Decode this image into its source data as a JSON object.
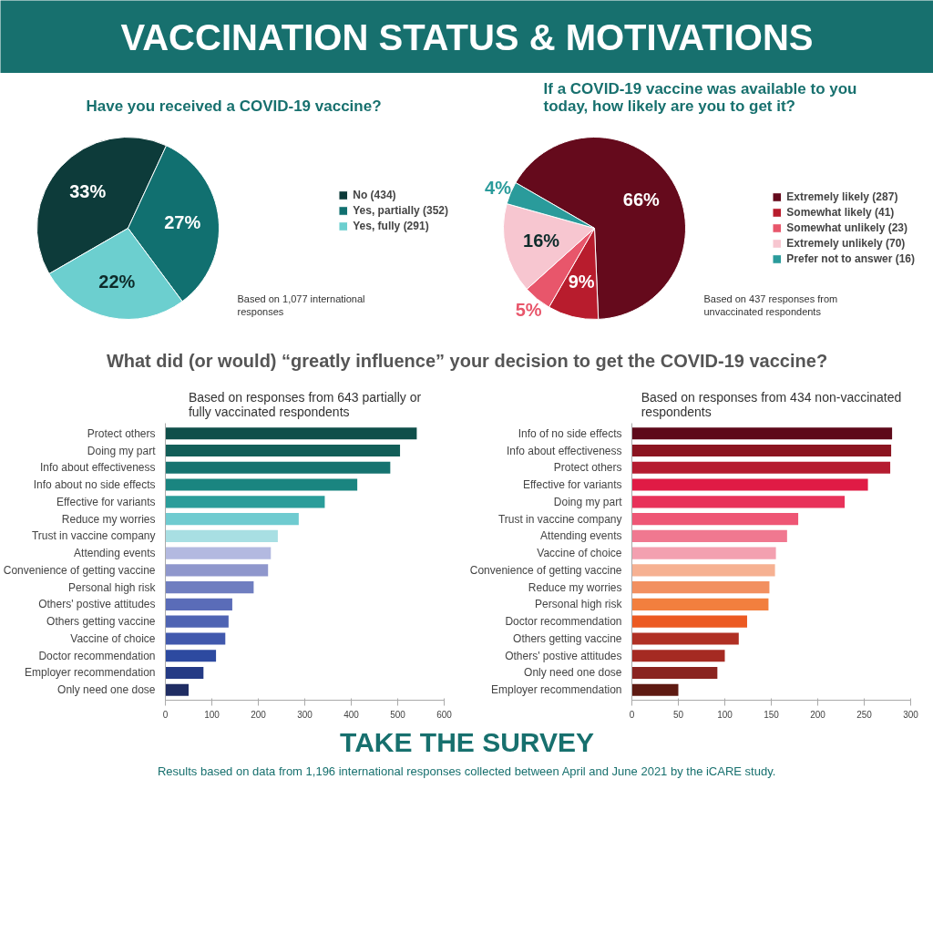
{
  "chart_data": [
    {
      "type": "other",
      "title": "VACCINATION STATUS & MOTIVATIONS"
    },
    {
      "type": "pie",
      "title": "Have you received a COVID-19 vaccine?",
      "categories": [
        "No (434)",
        "Yes, partially (352)",
        "Yes, fully (291)"
      ],
      "values": [
        33,
        27,
        22
      ],
      "value_labels": [
        "33%",
        "27%",
        "22%"
      ],
      "colors": [
        "#0d3b3a",
        "#117070",
        "#6ccfcf"
      ],
      "legend": "right",
      "annotations": [
        "Based on 1,077 international responses"
      ]
    },
    {
      "type": "pie",
      "title": "If a COVID-19 vaccine was available to you today, how likely are you to get it?",
      "categories": [
        "Extremely likely (287)",
        "Somewhat likely (41)",
        "Somewhat unlikely (23)",
        "Extremely unlikely (70)",
        "Prefer not to answer (16)"
      ],
      "values": [
        66,
        9,
        5,
        16,
        4
      ],
      "value_labels": [
        "66%",
        "9%",
        "5%",
        "16%",
        "4%"
      ],
      "colors": [
        "#650a1c",
        "#b81c2d",
        "#e8566b",
        "#f7c6d0",
        "#2a9b9b"
      ],
      "legend": "right",
      "annotations": [
        "Based on 437 responses from unvaccinated respondents"
      ]
    },
    {
      "type": "other",
      "title": "What did (or would) “greatly influence” your decision to get the COVID-19 vaccine?"
    },
    {
      "type": "bar",
      "orientation": "horizontal",
      "subtitle": "Based on responses from 643 partially or fully vaccinated respondents",
      "categories": [
        "Protect others",
        "Doing my part",
        "Info about effectiveness",
        "Info about no side effects",
        "Effective for variants",
        "Reduce my worries",
        "Trust in vaccine company",
        "Attending events",
        "Convenience of getting vaccine",
        "Personal high risk",
        "Others' postive attitudes",
        "Others getting vaccine",
        "Vaccine of choice",
        "Doctor recommendation",
        "Employer recommendation",
        "Only need one dose"
      ],
      "values": [
        541,
        505,
        484,
        413,
        343,
        287,
        242,
        227,
        221,
        190,
        144,
        136,
        129,
        109,
        82,
        50
      ],
      "colors": [
        "#0f4f4a",
        "#125e58",
        "#167370",
        "#1a8580",
        "#2a9d9a",
        "#6fcbd0",
        "#a8dfe3",
        "#b3b9e0",
        "#8f97cc",
        "#6f7ec0",
        "#5a6cb8",
        "#4f64b3",
        "#4159ad",
        "#2d4aa0",
        "#243a85",
        "#1f2d63"
      ],
      "xlim": [
        0,
        600
      ],
      "xticks": [
        0,
        100,
        200,
        300,
        400,
        500,
        600
      ]
    },
    {
      "type": "bar",
      "orientation": "horizontal",
      "subtitle": "Based on responses from 434 non-vaccinated respondents",
      "categories": [
        "Info of no side effects",
        "Info about effectiveness",
        "Protect others",
        "Effective for variants",
        "Doing my part",
        "Trust in vaccine company",
        "Attending events",
        "Vaccine of choice",
        "Convenience of getting vaccine",
        "Reduce my worries",
        "Personal high risk",
        "Doctor recommendation",
        "Others getting vaccine",
        "Others' postive attitudes",
        "Only need one dose",
        "Employer recommendation"
      ],
      "values": [
        280,
        279,
        278,
        254,
        229,
        179,
        167,
        155,
        154,
        148,
        147,
        124,
        115,
        100,
        92,
        50
      ],
      "colors": [
        "#5e0a1a",
        "#8b1420",
        "#b51c30",
        "#e01b45",
        "#e8325a",
        "#ee5675",
        "#f07890",
        "#f3a0b0",
        "#f6b192",
        "#f29060",
        "#f27f3e",
        "#ec5a22",
        "#b03024",
        "#a52a22",
        "#8a2420",
        "#5e1a12"
      ],
      "xlim": [
        0,
        300
      ],
      "xticks": [
        0,
        50,
        100,
        150,
        200,
        250,
        300
      ]
    },
    {
      "type": "other",
      "annotations": [
        "TAKE THE SURVEY",
        "Results based on data from 1,196 international responses collected between April and June 2021 by the iCARE study."
      ]
    }
  ]
}
